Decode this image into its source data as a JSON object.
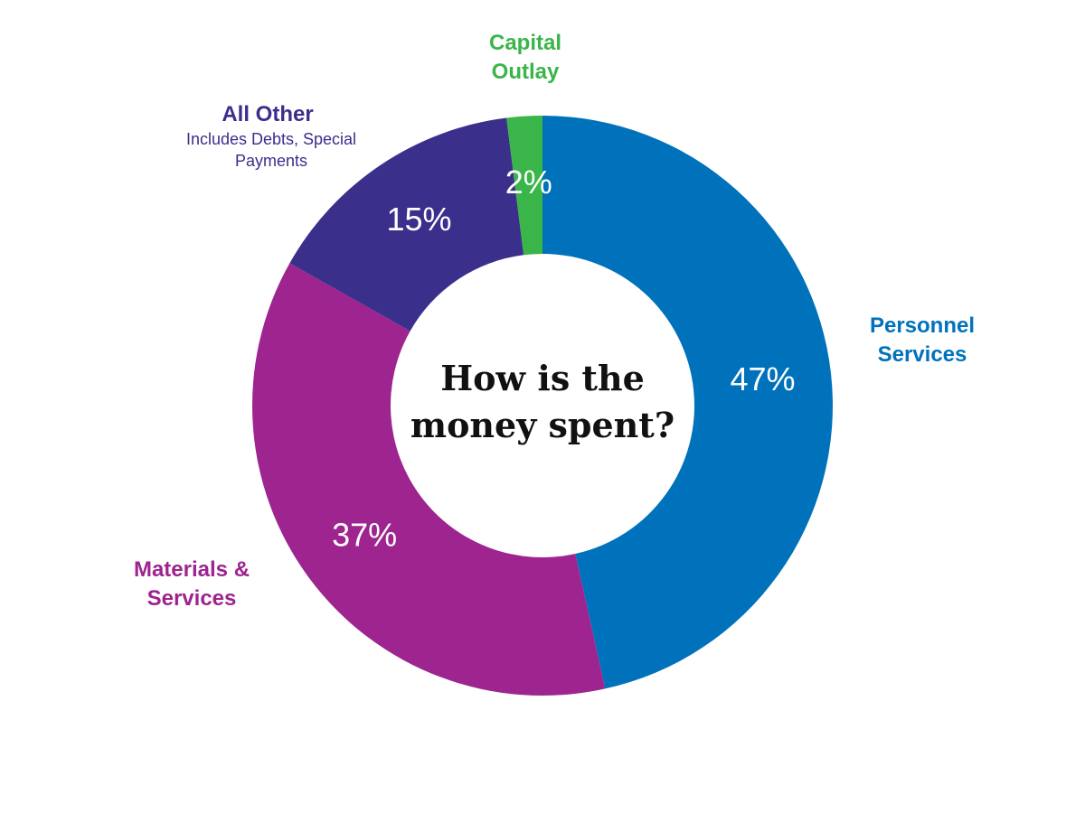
{
  "chart_data": {
    "type": "donut",
    "title": "How is the money spent?",
    "categories": [
      "Personnel Services",
      "Materials & Services",
      "All Other",
      "Capital Outlay"
    ],
    "values": [
      47,
      37,
      15,
      2
    ],
    "value_labels": [
      "47%",
      "37%",
      "15%",
      "2%"
    ],
    "colors": [
      "#0072bc",
      "#9e248f",
      "#3b2f8c",
      "#39b54a"
    ],
    "annotations": [
      "Includes Debts, Special Payments"
    ]
  }
}
